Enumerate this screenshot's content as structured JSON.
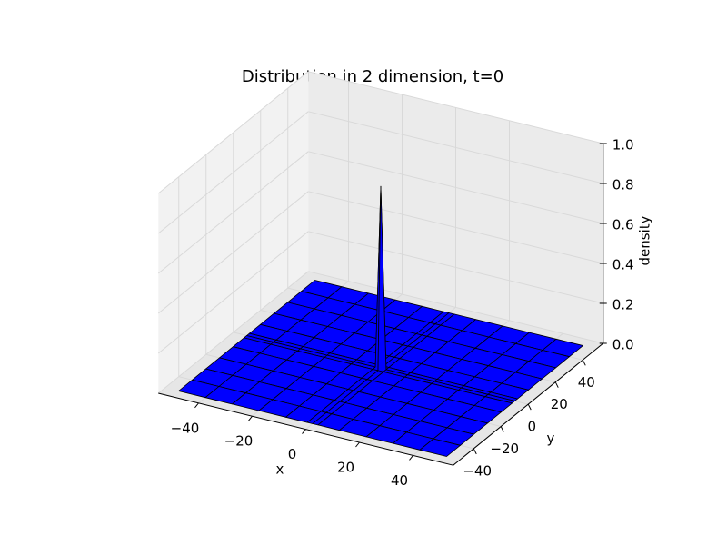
{
  "chart_data": {
    "type": "surface",
    "title": "Distribution in 2 dimension, t=0",
    "xlabel": "x",
    "ylabel": "y",
    "zlabel": "density",
    "color": "#0000ff",
    "grid": true,
    "x": [
      -50,
      -40,
      -30,
      -20,
      -10,
      -2,
      0,
      2,
      10,
      20,
      30,
      40,
      50
    ],
    "y": [
      -50,
      -40,
      -30,
      -20,
      -10,
      -2,
      0,
      2,
      10,
      20,
      30,
      40,
      50
    ],
    "z": [
      [
        0,
        0,
        0,
        0,
        0,
        0,
        0,
        0,
        0,
        0,
        0,
        0,
        0
      ],
      [
        0,
        0,
        0,
        0,
        0,
        0,
        0,
        0,
        0,
        0,
        0,
        0,
        0
      ],
      [
        0,
        0,
        0,
        0,
        0,
        0,
        0,
        0,
        0,
        0,
        0,
        0,
        0
      ],
      [
        0,
        0,
        0,
        0,
        0,
        0,
        0,
        0,
        0,
        0,
        0,
        0,
        0
      ],
      [
        0,
        0,
        0,
        0,
        0,
        0,
        0,
        0,
        0,
        0,
        0,
        0,
        0
      ],
      [
        0,
        0,
        0,
        0,
        0,
        0,
        0,
        0,
        0,
        0,
        0,
        0,
        0
      ],
      [
        0,
        0,
        0,
        0,
        0,
        0,
        0.91,
        0,
        0,
        0,
        0,
        0,
        0
      ],
      [
        0,
        0,
        0,
        0,
        0,
        0,
        0,
        0,
        0,
        0,
        0,
        0,
        0
      ],
      [
        0,
        0,
        0,
        0,
        0,
        0,
        0,
        0,
        0,
        0,
        0,
        0,
        0
      ],
      [
        0,
        0,
        0,
        0,
        0,
        0,
        0,
        0,
        0,
        0,
        0,
        0,
        0
      ],
      [
        0,
        0,
        0,
        0,
        0,
        0,
        0,
        0,
        0,
        0,
        0,
        0,
        0
      ],
      [
        0,
        0,
        0,
        0,
        0,
        0,
        0,
        0,
        0,
        0,
        0,
        0,
        0
      ],
      [
        0,
        0,
        0,
        0,
        0,
        0,
        0,
        0,
        0,
        0,
        0,
        0,
        0
      ]
    ],
    "xlim": [
      -55,
      55
    ],
    "ylim": [
      -55,
      55
    ],
    "zlim": [
      0,
      1
    ],
    "xticks": [
      {
        "value": -40,
        "label": "−40"
      },
      {
        "value": -20,
        "label": "−20"
      },
      0,
      20,
      40
    ],
    "yticks": [
      {
        "value": -40,
        "label": "−40"
      },
      {
        "value": -20,
        "label": "−20"
      },
      0,
      20,
      40
    ],
    "zticks": [
      {
        "value": 0,
        "label": "0.0"
      },
      0.2,
      0.4,
      0.6,
      0.8,
      {
        "value": 1,
        "label": "1.0"
      }
    ]
  }
}
